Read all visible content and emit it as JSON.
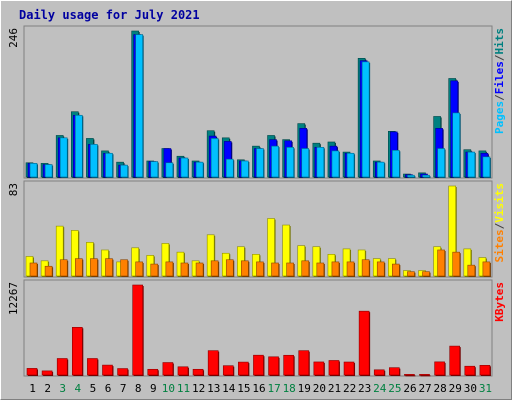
{
  "chart_data": {
    "type": "bar",
    "title": "Daily usage for July 2021",
    "x": [
      "1",
      "2",
      "3",
      "4",
      "5",
      "6",
      "7",
      "8",
      "9",
      "10",
      "11",
      "12",
      "13",
      "14",
      "15",
      "16",
      "17",
      "18",
      "19",
      "20",
      "21",
      "22",
      "23",
      "24",
      "25",
      "26",
      "27",
      "28",
      "29",
      "30",
      "31"
    ],
    "weekend_days": [
      "3",
      "4",
      "10",
      "11",
      "17",
      "18",
      "24",
      "25",
      "31"
    ],
    "panels": [
      {
        "id": "top",
        "ymax_label": "246",
        "ymax": 246,
        "legend": [
          {
            "text": "Hits",
            "color": "#008080"
          },
          {
            "text": "/",
            "color": "#404040"
          },
          {
            "text": "Files",
            "color": "#0000ff"
          },
          {
            "text": "/",
            "color": "#404040"
          },
          {
            "text": "Pages",
            "color": "#00c0ff"
          }
        ],
        "series": [
          {
            "name": "Hits",
            "color": "#008080",
            "values": [
              24,
              23,
              70,
              110,
              65,
              44,
              25,
              246,
              27,
              48,
              35,
              27,
              78,
              66,
              29,
              52,
              70,
              63,
              90,
              57,
              59,
              42,
              200,
              27,
              77,
              5,
              7,
              102,
              166,
              46,
              44
            ]
          },
          {
            "name": "Files",
            "color": "#0000ff",
            "values": [
              23,
              21,
              66,
              104,
              55,
              40,
              20,
              240,
              26,
              48,
              32,
              25,
              69,
              60,
              27,
              48,
              63,
              61,
              82,
              50,
              52,
              40,
              196,
              25,
              76,
              4,
              5,
              82,
              162,
              42,
              40
            ]
          },
          {
            "name": "Pages",
            "color": "#00c0ff",
            "values": [
              23,
              21,
              66,
              104,
              55,
              40,
              20,
              240,
              26,
              24,
              32,
              25,
              65,
              30,
              27,
              48,
              52,
              50,
              48,
              50,
              44,
              40,
              194,
              25,
              45,
              3,
              3,
              48,
              108,
              42,
              34
            ]
          }
        ]
      },
      {
        "id": "middle",
        "ymax_label": "83",
        "ymax": 83,
        "legend": [
          {
            "text": "Visits",
            "color": "#ffff00"
          },
          {
            "text": "/",
            "color": "#404040"
          },
          {
            "text": "Sites",
            "color": "#ff8000"
          }
        ],
        "series": [
          {
            "name": "Visits",
            "color": "#ffff00",
            "values": [
              18,
              14,
              46,
              42,
              31,
              24,
              13,
              26,
              19,
              30,
              22,
              14,
              38,
              21,
              27,
              20,
              53,
              47,
              28,
              27,
              20,
              25,
              24,
              16,
              16,
              5,
              5,
              27,
              83,
              25,
              17
            ]
          },
          {
            "name": "Sites",
            "color": "#ff8000",
            "values": [
              12,
              9,
              15,
              16,
              16,
              16,
              15,
              13,
              11,
              13,
              12,
              12,
              14,
              15,
              14,
              13,
              12,
              12,
              14,
              12,
              13,
              13,
              15,
              13,
              11,
              4,
              4,
              24,
              22,
              10,
              13
            ]
          }
        ]
      },
      {
        "id": "bottom",
        "ymax_label": "12267",
        "ymax": 12267,
        "legend": [
          {
            "text": "KBytes",
            "color": "#ff0000"
          }
        ],
        "series": [
          {
            "name": "KBytes",
            "color": "#ff0000",
            "values": [
              900,
              560,
              2250,
              6500,
              2250,
              1350,
              880,
              12267,
              780,
              1700,
              1120,
              780,
              3320,
              1270,
              1760,
              2700,
              2480,
              2690,
              3320,
              1780,
              1980,
              1770,
              8700,
              710,
              1000,
              90,
              90,
              1790,
              3940,
              1200,
              1320
            ]
          }
        ]
      }
    ]
  }
}
